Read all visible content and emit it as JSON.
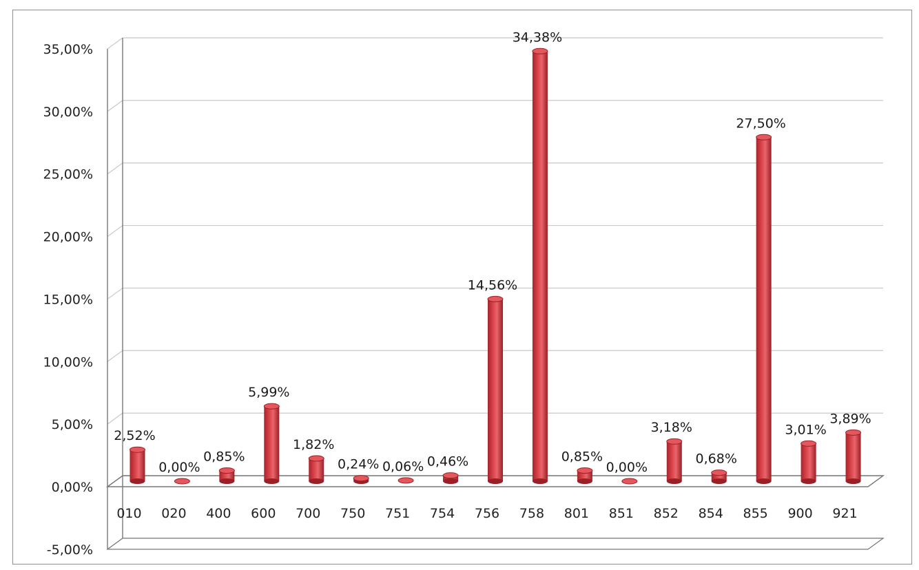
{
  "chart_data": {
    "type": "bar",
    "title": "",
    "xlabel": "",
    "ylabel": "",
    "ylim": [
      -5,
      35
    ],
    "ytick_step": 5,
    "y_tick_labels": [
      "-5,00%",
      "0,00%",
      "5,00%",
      "10,00%",
      "15,00%",
      "20,00%",
      "25,00%",
      "30,00%",
      "35,00%"
    ],
    "grid": true,
    "legend": "none",
    "style": "3d-cylinder",
    "bar_color": "#d9434a",
    "bar_edge_color": "#9c1f26",
    "categories": [
      "010",
      "020",
      "400",
      "600",
      "700",
      "750",
      "751",
      "754",
      "756",
      "758",
      "801",
      "851",
      "852",
      "854",
      "855",
      "900",
      "921"
    ],
    "values": [
      2.52,
      0.0,
      0.85,
      5.99,
      1.82,
      0.24,
      0.06,
      0.46,
      14.56,
      34.38,
      0.85,
      0.0,
      3.18,
      0.68,
      27.5,
      3.01,
      3.89
    ],
    "data_labels": [
      "2,52%",
      "0,00%",
      "0,85%",
      "5,99%",
      "1,82%",
      "0,24%",
      "0,06%",
      "0,46%",
      "14,56%",
      "34,38%",
      "0,85%",
      "0,00%",
      "3,18%",
      "0,68%",
      "27,50%",
      "3,01%",
      "3,89%"
    ]
  }
}
